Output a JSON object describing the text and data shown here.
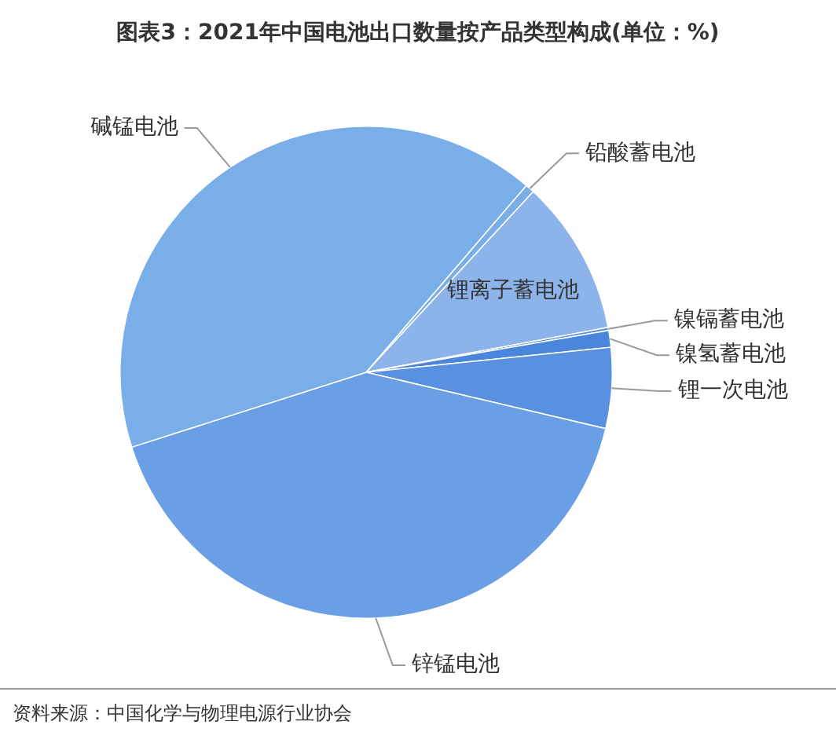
{
  "chart_data": {
    "type": "pie",
    "title": "图表3：2021年中国电池出口数量按产品类型构成(单位：%)",
    "categories": [
      "铅酸蓄电池",
      "锂离子蓄电池",
      "镍镉蓄电池",
      "镍氢蓄电池",
      "锂一次电池",
      "锌锰电池",
      "碱锰电池"
    ],
    "values": [
      0.6,
      10.2,
      0.2,
      1.1,
      5.3,
      41.4,
      41.2
    ],
    "colors": [
      "#7aaee8",
      "#8cb4ea",
      "#5b93e0",
      "#4a86db",
      "#5a90e0",
      "#6a9fe6",
      "#7aaee8"
    ],
    "annotations": [
      "资料来源：中国化学与物理电源行业协会"
    ],
    "legend": false
  }
}
